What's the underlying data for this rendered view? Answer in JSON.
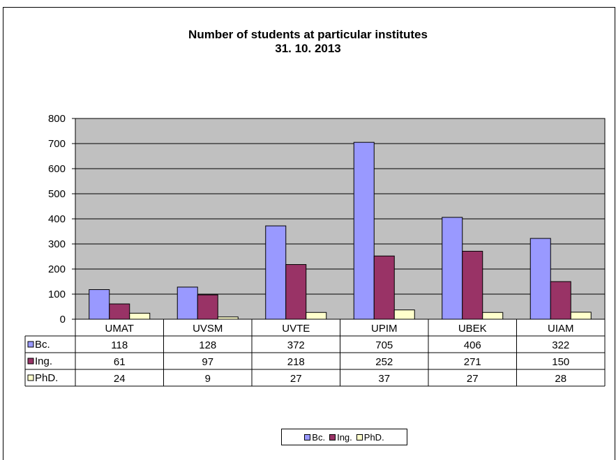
{
  "chart_data": {
    "type": "bar",
    "title": "Number of students at particular institutes",
    "subtitle": "31. 10. 2013",
    "categories": [
      "UMAT",
      "UVSM",
      "UVTE",
      "UPIM",
      "UBEK",
      "UIAM"
    ],
    "series": [
      {
        "name": "Bc.",
        "values": [
          118,
          128,
          372,
          705,
          406,
          322
        ],
        "color": "#9999ff"
      },
      {
        "name": "Ing.",
        "values": [
          61,
          97,
          218,
          252,
          271,
          150
        ],
        "color": "#993366"
      },
      {
        "name": "PhD.",
        "values": [
          24,
          9,
          27,
          37,
          27,
          28
        ],
        "color": "#ffffcc"
      }
    ],
    "ylim": [
      0,
      800
    ],
    "yticks": [
      0,
      100,
      200,
      300,
      400,
      500,
      600,
      700,
      800
    ],
    "plot_background": "#c0c0c0",
    "grid": true,
    "data_table": true,
    "legend_position": "bottom"
  }
}
